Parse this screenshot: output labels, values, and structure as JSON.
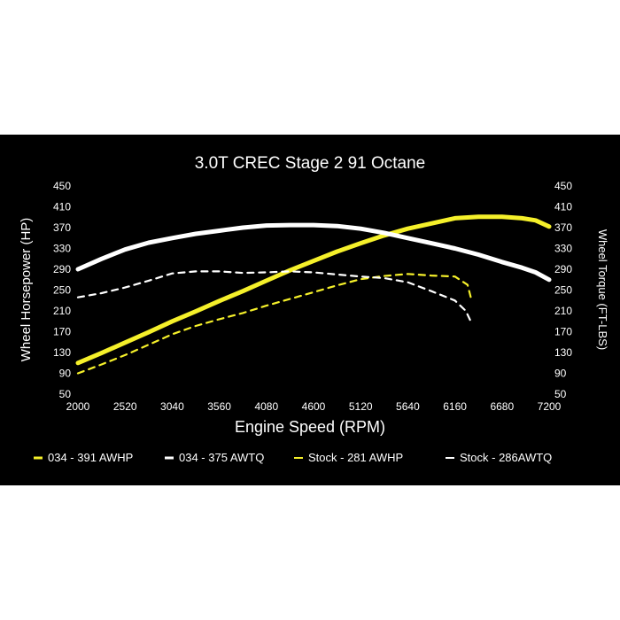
{
  "chart_data": {
    "type": "line",
    "title": "3.0T CREC Stage 2 91 Octane",
    "xlabel": "Engine Speed (RPM)",
    "ylabel_left": "Wheel Horsepower (HP)",
    "ylabel_right": "Wheel Torque (FT-LBS)",
    "xlim": [
      2000,
      7200
    ],
    "ylim": [
      50,
      450
    ],
    "x_ticks": [
      "2000",
      "2520",
      "3040",
      "3560",
      "4080",
      "4600",
      "5120",
      "5640",
      "6160",
      "6680",
      "7200"
    ],
    "y_ticks": [
      "50",
      "90",
      "130",
      "170",
      "210",
      "250",
      "290",
      "330",
      "370",
      "410",
      "450"
    ],
    "grid": false,
    "legend_position": "bottom",
    "colors": {
      "background": "#000000",
      "text": "#ffffff",
      "yellow": "#f5f02a",
      "white": "#ffffff"
    },
    "series": [
      {
        "name": "034 - 391 AWHP",
        "color": "#f5f02a",
        "dash": "solid",
        "points": [
          [
            2000,
            110
          ],
          [
            2260,
            129
          ],
          [
            2520,
            149
          ],
          [
            2780,
            169
          ],
          [
            3040,
            190
          ],
          [
            3300,
            209
          ],
          [
            3560,
            229
          ],
          [
            3820,
            248
          ],
          [
            4080,
            268
          ],
          [
            4340,
            288
          ],
          [
            4600,
            306
          ],
          [
            4860,
            324
          ],
          [
            5120,
            340
          ],
          [
            5380,
            355
          ],
          [
            5640,
            368
          ],
          [
            5900,
            378
          ],
          [
            6160,
            388
          ],
          [
            6420,
            391
          ],
          [
            6680,
            391
          ],
          [
            6900,
            388
          ],
          [
            7050,
            384
          ],
          [
            7200,
            372
          ]
        ]
      },
      {
        "name": "034 - 375 AWTQ",
        "color": "#ffffff",
        "dash": "solid",
        "points": [
          [
            2000,
            290
          ],
          [
            2260,
            310
          ],
          [
            2520,
            328
          ],
          [
            2780,
            341
          ],
          [
            3040,
            350
          ],
          [
            3300,
            358
          ],
          [
            3560,
            364
          ],
          [
            3820,
            370
          ],
          [
            4080,
            374
          ],
          [
            4340,
            375
          ],
          [
            4600,
            375
          ],
          [
            4860,
            373
          ],
          [
            5120,
            368
          ],
          [
            5380,
            360
          ],
          [
            5640,
            350
          ],
          [
            5900,
            340
          ],
          [
            6160,
            330
          ],
          [
            6420,
            318
          ],
          [
            6680,
            304
          ],
          [
            6900,
            293
          ],
          [
            7050,
            284
          ],
          [
            7200,
            270
          ]
        ]
      },
      {
        "name": "Stock - 281 AWHP",
        "color": "#f5f02a",
        "dash": "dashed",
        "points": [
          [
            2000,
            90
          ],
          [
            2260,
            107
          ],
          [
            2520,
            125
          ],
          [
            2780,
            145
          ],
          [
            3040,
            165
          ],
          [
            3300,
            181
          ],
          [
            3560,
            194
          ],
          [
            3820,
            206
          ],
          [
            4080,
            220
          ],
          [
            4340,
            233
          ],
          [
            4600,
            246
          ],
          [
            4860,
            259
          ],
          [
            5120,
            271
          ],
          [
            5380,
            277
          ],
          [
            5640,
            281
          ],
          [
            5900,
            278
          ],
          [
            6160,
            276
          ],
          [
            6300,
            260
          ],
          [
            6340,
            233
          ]
        ]
      },
      {
        "name": "Stock - 286AWTQ",
        "color": "#ffffff",
        "dash": "dashed",
        "points": [
          [
            2000,
            236
          ],
          [
            2260,
            244
          ],
          [
            2520,
            255
          ],
          [
            2780,
            268
          ],
          [
            3040,
            282
          ],
          [
            3300,
            286
          ],
          [
            3560,
            286
          ],
          [
            3820,
            283
          ],
          [
            4080,
            284
          ],
          [
            4340,
            286
          ],
          [
            4600,
            284
          ],
          [
            4860,
            280
          ],
          [
            5120,
            276
          ],
          [
            5380,
            273
          ],
          [
            5640,
            265
          ],
          [
            5900,
            248
          ],
          [
            6160,
            230
          ],
          [
            6280,
            210
          ],
          [
            6340,
            188
          ]
        ]
      }
    ]
  }
}
